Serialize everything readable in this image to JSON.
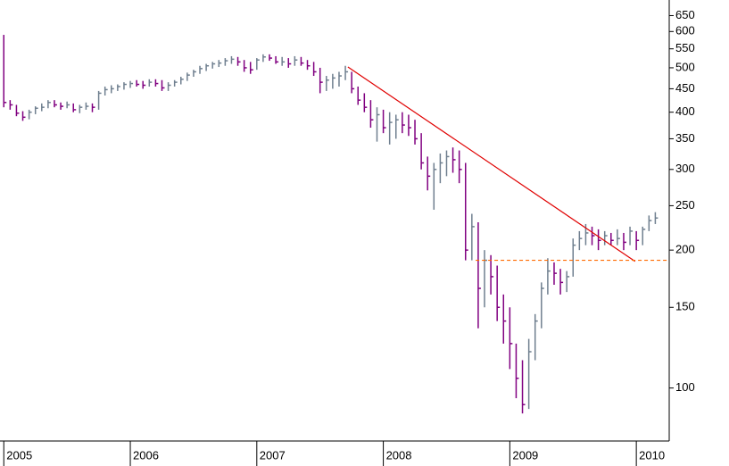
{
  "chart_data": {
    "type": "ohlc",
    "log_y": true,
    "up_color": "#6f7f8f",
    "down_color": "#800080",
    "x": [
      2005.0,
      2005.05,
      2005.1,
      2005.15,
      2005.2,
      2005.25,
      2005.3,
      2005.35,
      2005.4,
      2005.45,
      2005.5,
      2005.55,
      2005.6,
      2005.65,
      2005.7,
      2005.75,
      2005.8,
      2005.85,
      2005.9,
      2005.95,
      2006.0,
      2006.05,
      2006.1,
      2006.15,
      2006.2,
      2006.25,
      2006.3,
      2006.35,
      2006.4,
      2006.45,
      2006.5,
      2006.55,
      2006.6,
      2006.65,
      2006.7,
      2006.75,
      2006.8,
      2006.85,
      2006.9,
      2006.95,
      2007.0,
      2007.05,
      2007.1,
      2007.15,
      2007.2,
      2007.25,
      2007.3,
      2007.35,
      2007.4,
      2007.45,
      2007.5,
      2007.55,
      2007.6,
      2007.65,
      2007.7,
      2007.75,
      2007.8,
      2007.85,
      2007.9,
      2007.95,
      2008.0,
      2008.05,
      2008.1,
      2008.15,
      2008.2,
      2008.25,
      2008.3,
      2008.35,
      2008.4,
      2008.45,
      2008.5,
      2008.55,
      2008.6,
      2008.65,
      2008.7,
      2008.75,
      2008.8,
      2008.85,
      2008.9,
      2008.95,
      2009.0,
      2009.05,
      2009.1,
      2009.15,
      2009.2,
      2009.25,
      2009.3,
      2009.35,
      2009.4,
      2009.45,
      2009.5,
      2009.55,
      2009.6,
      2009.65,
      2009.7,
      2009.75,
      2009.8,
      2009.85,
      2009.9,
      2009.95,
      2010.0,
      2010.05,
      2010.1,
      2010.15
    ],
    "high": [
      590,
      425,
      415,
      402,
      405,
      412,
      418,
      425,
      425,
      420,
      422,
      418,
      415,
      420,
      418,
      445,
      455,
      458,
      460,
      465,
      468,
      470,
      468,
      472,
      472,
      470,
      465,
      470,
      478,
      488,
      495,
      505,
      510,
      515,
      520,
      525,
      530,
      528,
      520,
      515,
      525,
      535,
      535,
      530,
      528,
      525,
      530,
      528,
      520,
      515,
      500,
      480,
      485,
      490,
      505,
      490,
      455,
      440,
      425,
      410,
      405,
      400,
      395,
      400,
      395,
      385,
      360,
      320,
      310,
      325,
      330,
      335,
      330,
      310,
      240,
      230,
      200,
      195,
      185,
      160,
      150,
      125,
      115,
      128,
      145,
      170,
      192,
      188,
      182,
      180,
      212,
      220,
      228,
      225,
      222,
      220,
      218,
      222,
      218,
      225,
      220,
      225,
      238,
      242
    ],
    "low": [
      410,
      405,
      392,
      383,
      386,
      396,
      402,
      408,
      410,
      405,
      408,
      400,
      398,
      405,
      400,
      405,
      435,
      440,
      445,
      448,
      452,
      455,
      450,
      455,
      455,
      445,
      445,
      455,
      460,
      468,
      478,
      485,
      492,
      498,
      502,
      505,
      510,
      505,
      490,
      485,
      495,
      515,
      518,
      510,
      505,
      500,
      505,
      505,
      495,
      480,
      440,
      445,
      450,
      455,
      470,
      440,
      415,
      400,
      370,
      345,
      360,
      340,
      350,
      360,
      355,
      340,
      300,
      270,
      245,
      280,
      290,
      295,
      280,
      190,
      190,
      135,
      150,
      160,
      140,
      125,
      110,
      95,
      88,
      90,
      115,
      135,
      160,
      168,
      160,
      162,
      175,
      200,
      205,
      205,
      200,
      205,
      205,
      205,
      200,
      205,
      200,
      205,
      220,
      228
    ],
    "close": [
      420,
      415,
      398,
      390,
      400,
      408,
      410,
      420,
      415,
      412,
      415,
      405,
      410,
      412,
      410,
      440,
      448,
      450,
      455,
      460,
      462,
      460,
      458,
      465,
      462,
      452,
      458,
      465,
      472,
      482,
      490,
      498,
      505,
      510,
      512,
      518,
      522,
      515,
      500,
      495,
      520,
      528,
      525,
      515,
      515,
      510,
      520,
      512,
      505,
      490,
      465,
      470,
      475,
      480,
      490,
      450,
      425,
      410,
      385,
      395,
      370,
      380,
      385,
      375,
      370,
      350,
      310,
      290,
      300,
      310,
      320,
      315,
      300,
      200,
      225,
      165,
      190,
      175,
      150,
      140,
      125,
      105,
      92,
      120,
      140,
      165,
      180,
      178,
      170,
      175,
      205,
      212,
      218,
      215,
      210,
      215,
      210,
      212,
      208,
      220,
      210,
      222,
      232,
      235
    ],
    "lines": [
      {
        "x": [
          2007.72,
          2009.99
        ],
        "y": [
          502,
          189
        ],
        "color": "#e00000",
        "style": "solid"
      },
      {
        "x": [
          2008.73,
          2010.26
        ],
        "y": [
          190,
          190
        ],
        "color": "#ff6a00",
        "style": "dashed"
      }
    ],
    "xlim": [
      2004.97,
      2010.26
    ],
    "xticks": [
      {
        "value": 2005,
        "label": "2005"
      },
      {
        "value": 2006,
        "label": "2006"
      },
      {
        "value": 2007,
        "label": "2007"
      },
      {
        "value": 2008,
        "label": "2008"
      },
      {
        "value": 2009,
        "label": "2009"
      },
      {
        "value": 2010,
        "label": "2010"
      }
    ],
    "ylim": [
      78,
      703
    ],
    "yticks": [
      100,
      150,
      200,
      250,
      300,
      350,
      400,
      450,
      500,
      550,
      600,
      650
    ]
  }
}
